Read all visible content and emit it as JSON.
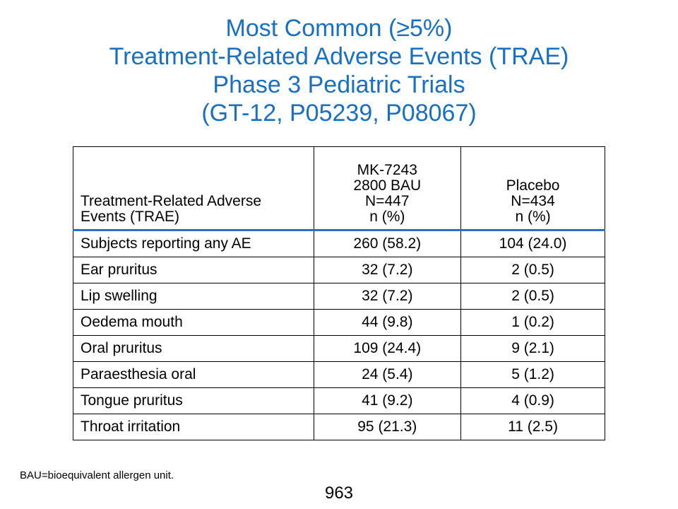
{
  "title": {
    "line1": "Most Common (≥5%)",
    "line2": "Treatment-Related Adverse Events (TRAE)",
    "line3": "Phase 3 Pediatric Trials",
    "line4": "(GT-12, P05239, P08067)"
  },
  "table": {
    "headers": {
      "col0": [
        "Treatment-Related Adverse",
        "Events (TRAE)"
      ],
      "col1": [
        "MK-7243",
        "2800 BAU",
        "N=447",
        "n (%)"
      ],
      "col2": [
        "Placebo",
        "N=434",
        "n (%)"
      ]
    },
    "rows": [
      [
        "Subjects reporting any AE",
        "260 (58.2)",
        "104 (24.0)"
      ],
      [
        "Ear pruritus",
        "32 (7.2)",
        "2 (0.5)"
      ],
      [
        "Lip swelling",
        "32 (7.2)",
        "2 (0.5)"
      ],
      [
        "Oedema mouth",
        "44 (9.8)",
        "1 (0.2)"
      ],
      [
        "Oral pruritus",
        "109 (24.4)",
        "9 (2.1)"
      ],
      [
        "Paraesthesia oral",
        "24 (5.4)",
        "5 (1.2)"
      ],
      [
        "Tongue pruritus",
        "41 (9.2)",
        "4 (0.9)"
      ],
      [
        "Throat irritation",
        "95 (21.3)",
        "11 (2.5)"
      ]
    ]
  },
  "footnote": "BAU=bioequivalent allergen unit.",
  "page_number": "963",
  "colors": {
    "title": "#1a6fbf",
    "header_rule": "#2a6ec4"
  }
}
